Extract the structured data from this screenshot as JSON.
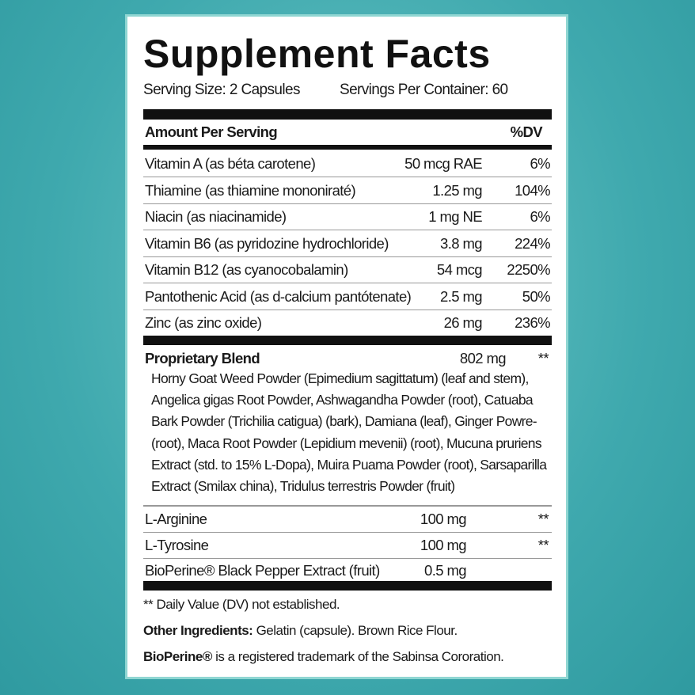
{
  "title": "Supplement Facts",
  "serving_size": "Serving Size: 2 Capsules",
  "servings_per_container": "Servings Per Container: 60",
  "header": {
    "amount": "Amount Per Serving",
    "dv": "%DV"
  },
  "nutrients": [
    {
      "name": "Vitamin A (as béta carotene)",
      "amount": "50 mcg RAE",
      "dv": "6%"
    },
    {
      "name": "Thiamine (as thiamine mononiraté)",
      "amount": "1.25 mg",
      "dv": "104%"
    },
    {
      "name": "Niacin (as niacinamide)",
      "amount": "1 mg NE",
      "dv": "6%"
    },
    {
      "name": "Vitamin B6 (as pyridozine hydrochloride)",
      "amount": "3.8 mg",
      "dv": "224%"
    },
    {
      "name": "Vitamin B12 (as cyanocobalamin)",
      "amount": "54 mcg",
      "dv": "2250%"
    },
    {
      "name": "Pantothenic Acid (as d-calcium pantótenate)",
      "amount": "2.5 mg",
      "dv": "50%"
    },
    {
      "name": "Zinc (as zinc oxide)",
      "amount": "26 mg",
      "dv": "236%"
    }
  ],
  "blend": {
    "name": "Proprietary Blend",
    "amount": "802 mg",
    "dv": "**",
    "ingredients": "Horny Goat Weed Powder (Epimedium sagittatum) (leaf and stem), Angelica gigas Root Powder, Ashwagandha Powder (root), Catuaba Bark Powder (Trichilia catigua) (bark), Damiana (leaf), Ginger Powre- (root), Maca Root Powder (Lepidium mevenii) (root), Mucuna pruriens Extract (std. to 15% L-Dopa), Muira Puama Powder (root), Sarsaparilla Extract (Smilax china), Tridulus terrestris Powder (fruit)"
  },
  "others": [
    {
      "name": "L-Arginine",
      "amount": "100 mg",
      "dv": "**"
    },
    {
      "name": "L-Tyrosine",
      "amount": "100 mg",
      "dv": "**"
    },
    {
      "name": "BioPerine® Black Pepper Extract (fruit)",
      "amount": "0.5 mg",
      "dv": ""
    }
  ],
  "footer": {
    "dv_note": "** Daily Value (DV) not established.",
    "other_label": "Other Ingredients:",
    "other_value": " Gelatin (capsule). Brown Rice Flour.",
    "tm_label": "BioPerine®",
    "tm_value": " is a registered trademark of the Sabinsa Cororation."
  }
}
